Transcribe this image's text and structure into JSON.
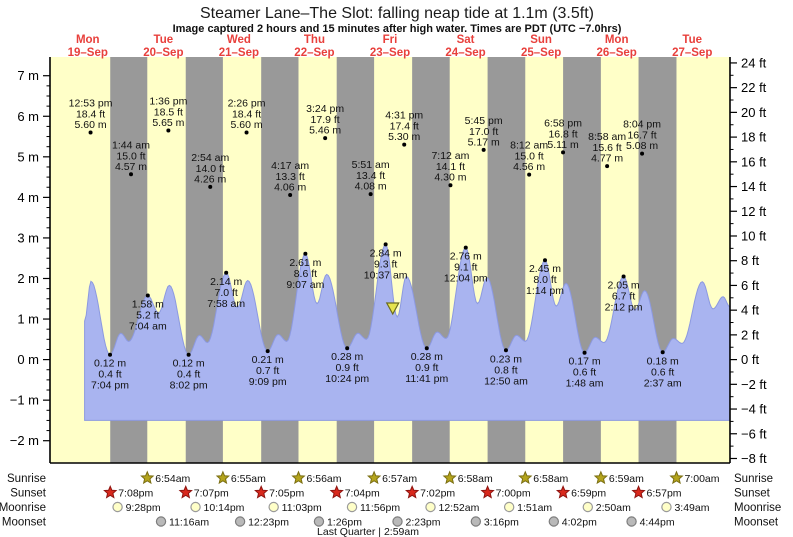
{
  "title": "Steamer Lane–The Slot: falling  neap tide at 1.1m (3.5ft)",
  "subtitle": "Image captured 2 hours and 15 minutes after high water. Times are PDT (UTC −7.0hrs)",
  "colors": {
    "day_band": "#ffffc8",
    "night_band": "#999999",
    "tide_fill": "#a9b4f0",
    "tide_stroke": "#8c99e0",
    "date_red": "#e8403c",
    "axis_black": "#000000",
    "sunrise_star": "#b4a41c",
    "sunrise_star_edge": "#7a6e12",
    "sunset_star": "#d8281c",
    "sunset_star_edge": "#8e1410",
    "moonrise_fill": "#ffffc8",
    "moonrise_edge": "#9a9a9a",
    "moonset_fill": "#b9b9b9",
    "moonset_edge": "#7d7d7d",
    "marker_triangle": "#e6e34e",
    "marker_triangle_edge": "#6b6b1e"
  },
  "chart_data": {
    "type": "area",
    "ylabel_left_unit": "m",
    "ylabel_right_unit": "ft",
    "y_left_ticks": [
      7,
      6,
      5,
      4,
      3,
      2,
      1,
      0,
      -1,
      -2
    ],
    "y_right_ticks": [
      24,
      22,
      20,
      18,
      16,
      14,
      12,
      10,
      8,
      6,
      4,
      2,
      0,
      -2,
      -4,
      -6,
      -8
    ],
    "fill_base_m": -1.5,
    "days": [
      {
        "weekday": "Mon",
        "date": "19–Sep"
      },
      {
        "weekday": "Tue",
        "date": "20–Sep"
      },
      {
        "weekday": "Wed",
        "date": "21–Sep"
      },
      {
        "weekday": "Thu",
        "date": "22–Sep"
      },
      {
        "weekday": "Fri",
        "date": "23–Sep"
      },
      {
        "weekday": "Sat",
        "date": "24–Sep"
      },
      {
        "weekday": "Sun",
        "date": "25–Sep"
      },
      {
        "weekday": "Mon",
        "date": "26–Sep"
      },
      {
        "weekday": "Tue",
        "date": "27–Sep"
      }
    ],
    "high_tide_markers": [
      {
        "day": 0,
        "hour": 12.883,
        "time": "12:53 pm",
        "ft": "18.4 ft",
        "m": "5.60 m",
        "height_m": 5.6
      },
      {
        "day": 1,
        "hour": 1.733,
        "time": "1:44 am",
        "ft": "15.0 ft",
        "m": "4.57 m",
        "height_m": 4.57
      },
      {
        "day": 1,
        "hour": 13.6,
        "time": "1:36 pm",
        "ft": "18.5 ft",
        "m": "5.65 m",
        "height_m": 5.65
      },
      {
        "day": 2,
        "hour": 2.9,
        "time": "2:54 am",
        "ft": "14.0 ft",
        "m": "4.26 m",
        "height_m": 4.26
      },
      {
        "day": 2,
        "hour": 14.433,
        "time": "2:26 pm",
        "ft": "18.4 ft",
        "m": "5.60 m",
        "height_m": 5.6
      },
      {
        "day": 3,
        "hour": 4.283,
        "time": "4:17 am",
        "ft": "13.3 ft",
        "m": "4.06 m",
        "height_m": 4.06
      },
      {
        "day": 3,
        "hour": 15.4,
        "time": "3:24 pm",
        "ft": "17.9 ft",
        "m": "5.46 m",
        "height_m": 5.46
      },
      {
        "day": 4,
        "hour": 5.85,
        "time": "5:51 am",
        "ft": "13.4 ft",
        "m": "4.08 m",
        "height_m": 4.08
      },
      {
        "day": 4,
        "hour": 16.517,
        "time": "4:31 pm",
        "ft": "17.4 ft",
        "m": "5.30 m",
        "height_m": 5.3
      },
      {
        "day": 5,
        "hour": 7.2,
        "time": "7:12 am",
        "ft": "14.1 ft",
        "m": "4.30 m",
        "height_m": 4.3
      },
      {
        "day": 5,
        "hour": 17.75,
        "time": "5:45 pm",
        "ft": "17.0 ft",
        "m": "5.17 m",
        "height_m": 5.17
      },
      {
        "day": 6,
        "hour": 8.2,
        "time": "8:12 am",
        "ft": "15.0 ft",
        "m": "4.56 m",
        "height_m": 4.56
      },
      {
        "day": 6,
        "hour": 18.967,
        "time": "6:58 pm",
        "ft": "16.8 ft",
        "m": "5.11 m",
        "height_m": 5.11
      },
      {
        "day": 7,
        "hour": 8.967,
        "time": "8:58 am",
        "ft": "15.6 ft",
        "m": "4.77 m",
        "height_m": 4.77
      },
      {
        "day": 7,
        "hour": 20.067,
        "time": "8:04 pm",
        "ft": "16.7 ft",
        "m": "5.08 m",
        "height_m": 5.08
      }
    ],
    "curve_labels": [
      {
        "day": 0,
        "hour": 19.067,
        "m": "0.12 m",
        "ft": "0.4 ft",
        "time": "7:04 pm",
        "height_m": 0.12,
        "kind": "low"
      },
      {
        "day": 1,
        "hour": 7.067,
        "m": "1.58 m",
        "ft": "5.2 ft",
        "time": "7:04 am",
        "height_m": 1.58,
        "kind": "high"
      },
      {
        "day": 1,
        "hour": 20.033,
        "m": "0.12 m",
        "ft": "0.4 ft",
        "time": "8:02 pm",
        "height_m": 0.12,
        "kind": "low"
      },
      {
        "day": 2,
        "hour": 7.967,
        "m": "2.14 m",
        "ft": "7.0 ft",
        "time": "7:58 am",
        "height_m": 2.14,
        "kind": "high"
      },
      {
        "day": 2,
        "hour": 21.15,
        "m": "0.21 m",
        "ft": "0.7 ft",
        "time": "9:09 pm",
        "height_m": 0.21,
        "kind": "low"
      },
      {
        "day": 3,
        "hour": 9.117,
        "m": "2.61 m",
        "ft": "8.6 ft",
        "time": "9:07 am",
        "height_m": 2.61,
        "kind": "high"
      },
      {
        "day": 3,
        "hour": 22.4,
        "m": "0.28 m",
        "ft": "0.9 ft",
        "time": "10:24 pm",
        "height_m": 0.28,
        "kind": "low"
      },
      {
        "day": 4,
        "hour": 10.617,
        "m": "2.84 m",
        "ft": "9.3 ft",
        "time": "10:37 am",
        "height_m": 2.84,
        "kind": "high"
      },
      {
        "day": 4,
        "hour": 23.683,
        "m": "0.28 m",
        "ft": "0.9 ft",
        "time": "11:41 pm",
        "height_m": 0.28,
        "kind": "low"
      },
      {
        "day": 5,
        "hour": 12.067,
        "m": "2.76 m",
        "ft": "9.1 ft",
        "time": "12:04 pm",
        "height_m": 2.76,
        "kind": "high"
      },
      {
        "day": 6,
        "hour": 0.833,
        "m": "0.23 m",
        "ft": "0.8 ft",
        "time": "12:50 am",
        "height_m": 0.23,
        "kind": "low"
      },
      {
        "day": 6,
        "hour": 13.233,
        "m": "2.45 m",
        "ft": "8.0 ft",
        "time": "1:14 pm",
        "height_m": 2.45,
        "kind": "high"
      },
      {
        "day": 7,
        "hour": 1.8,
        "m": "0.17 m",
        "ft": "0.6 ft",
        "time": "1:48 am",
        "height_m": 0.17,
        "kind": "low"
      },
      {
        "day": 7,
        "hour": 14.2,
        "m": "2.05 m",
        "ft": "6.7 ft",
        "time": "2:12 pm",
        "height_m": 2.05,
        "kind": "high"
      },
      {
        "day": 8,
        "hour": 2.617,
        "m": "0.18 m",
        "ft": "0.6 ft",
        "time": "2:37 am",
        "height_m": 0.18,
        "kind": "low"
      }
    ],
    "curve_points": [
      [
        11.0,
        0.95
      ],
      [
        13.0,
        1.93
      ],
      [
        19.067,
        0.12
      ],
      [
        22.5,
        0.65
      ],
      [
        25.0,
        0.45
      ],
      [
        31.067,
        1.58
      ],
      [
        34.5,
        1.15
      ],
      [
        37.9,
        1.83
      ],
      [
        44.033,
        0.12
      ],
      [
        47.5,
        0.6
      ],
      [
        50.0,
        0.42
      ],
      [
        55.967,
        2.14
      ],
      [
        59.5,
        1.28
      ],
      [
        62.8,
        1.95
      ],
      [
        69.15,
        0.21
      ],
      [
        72.5,
        0.62
      ],
      [
        75.2,
        0.45
      ],
      [
        81.117,
        2.61
      ],
      [
        84.8,
        1.38
      ],
      [
        87.9,
        2.1
      ],
      [
        94.4,
        0.28
      ],
      [
        97.8,
        0.65
      ],
      [
        100.5,
        0.5
      ],
      [
        106.617,
        2.84
      ],
      [
        110.3,
        1.05
      ],
      [
        113.2,
        2.05
      ],
      [
        119.683,
        0.28
      ],
      [
        123.0,
        0.68
      ],
      [
        125.8,
        0.52
      ],
      [
        132.067,
        2.76
      ],
      [
        135.8,
        1.38
      ],
      [
        138.8,
        2.02
      ],
      [
        144.833,
        0.23
      ],
      [
        148.2,
        0.6
      ],
      [
        151.0,
        0.45
      ],
      [
        157.233,
        2.45
      ],
      [
        160.8,
        1.32
      ],
      [
        163.9,
        1.88
      ],
      [
        169.8,
        0.17
      ],
      [
        173.2,
        0.55
      ],
      [
        176.0,
        0.42
      ],
      [
        182.2,
        2.05
      ],
      [
        185.8,
        1.22
      ],
      [
        188.9,
        1.7
      ],
      [
        194.617,
        0.18
      ],
      [
        198.0,
        0.52
      ],
      [
        200.8,
        0.4
      ],
      [
        207.2,
        1.92
      ],
      [
        210.6,
        1.25
      ],
      [
        213.8,
        1.55
      ],
      [
        216.0,
        1.3
      ]
    ],
    "current_marker": {
      "day": 4,
      "hour": 12.87,
      "height_m": 1.1
    }
  },
  "astro": {
    "rows": [
      {
        "name": "sunrise",
        "label": "Sunrise",
        "icon": "sunrise-star-icon",
        "entries": [
          {
            "day": 1,
            "hour": 6.9,
            "time": "6:54am"
          },
          {
            "day": 2,
            "hour": 6.917,
            "time": "6:55am"
          },
          {
            "day": 3,
            "hour": 6.933,
            "time": "6:56am"
          },
          {
            "day": 4,
            "hour": 6.95,
            "time": "6:57am"
          },
          {
            "day": 5,
            "hour": 6.967,
            "time": "6:58am"
          },
          {
            "day": 6,
            "hour": 6.967,
            "time": "6:58am"
          },
          {
            "day": 7,
            "hour": 6.983,
            "time": "6:59am"
          },
          {
            "day": 8,
            "hour": 7.0,
            "time": "7:00am"
          }
        ]
      },
      {
        "name": "sunset",
        "label": "Sunset",
        "icon": "sunset-star-icon",
        "entries": [
          {
            "day": 0,
            "hour": 19.133,
            "time": "7:08pm"
          },
          {
            "day": 1,
            "hour": 19.117,
            "time": "7:07pm"
          },
          {
            "day": 2,
            "hour": 19.083,
            "time": "7:05pm"
          },
          {
            "day": 3,
            "hour": 19.067,
            "time": "7:04pm"
          },
          {
            "day": 4,
            "hour": 19.033,
            "time": "7:02pm"
          },
          {
            "day": 5,
            "hour": 19.0,
            "time": "7:00pm"
          },
          {
            "day": 6,
            "hour": 18.983,
            "time": "6:59pm"
          },
          {
            "day": 7,
            "hour": 18.95,
            "time": "6:57pm"
          }
        ]
      },
      {
        "name": "moonrise",
        "label": "Moonrise",
        "icon": "moonrise-icon",
        "entries": [
          {
            "day": 0,
            "hour": 21.467,
            "time": "9:28pm"
          },
          {
            "day": 1,
            "hour": 22.233,
            "time": "10:14pm"
          },
          {
            "day": 2,
            "hour": 23.05,
            "time": "11:03pm"
          },
          {
            "day": 3,
            "hour": 23.933,
            "time": "11:56pm"
          },
          {
            "day": 5,
            "hour": 0.867,
            "time": "12:52am"
          },
          {
            "day": 6,
            "hour": 1.85,
            "time": "1:51am"
          },
          {
            "day": 7,
            "hour": 2.833,
            "time": "2:50am"
          },
          {
            "day": 8,
            "hour": 3.817,
            "time": "3:49am"
          }
        ]
      },
      {
        "name": "moonset",
        "label": "Moonset",
        "icon": "moonset-icon",
        "entries": [
          {
            "day": 1,
            "hour": 11.267,
            "time": "11:16am"
          },
          {
            "day": 2,
            "hour": 12.383,
            "time": "12:23pm"
          },
          {
            "day": 3,
            "hour": 13.433,
            "time": "1:26pm"
          },
          {
            "day": 4,
            "hour": 14.383,
            "time": "2:23pm"
          },
          {
            "day": 5,
            "hour": 15.267,
            "time": "3:16pm"
          },
          {
            "day": 6,
            "hour": 16.033,
            "time": "4:02pm"
          },
          {
            "day": 7,
            "hour": 16.733,
            "time": "4:44pm"
          }
        ]
      }
    ],
    "moon_phase": {
      "label": "Last Quarter",
      "time": "2:59am"
    }
  }
}
